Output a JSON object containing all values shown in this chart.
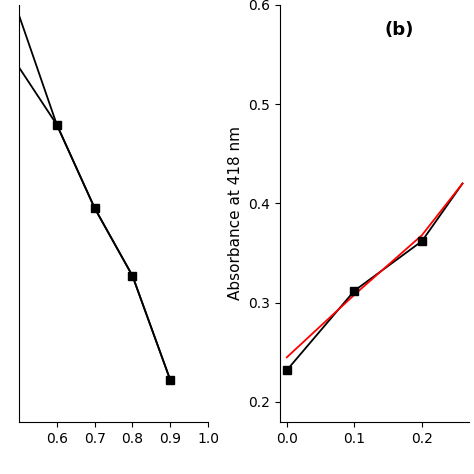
{
  "panel_a": {
    "data_x": [
      0.6,
      0.7,
      0.8,
      0.9
    ],
    "data_y": [
      0.535,
      0.455,
      0.39,
      0.29
    ],
    "line1_x": [
      0.5,
      0.6,
      0.7,
      0.8,
      0.9
    ],
    "line1_y": [
      0.59,
      0.535,
      0.455,
      0.39,
      0.29
    ],
    "line2_x": [
      0.5,
      0.6,
      0.7,
      0.8,
      0.9
    ],
    "line2_y": [
      0.64,
      0.535,
      0.455,
      0.39,
      0.29
    ],
    "xlim": [
      0.5,
      1.0
    ],
    "ylim": [
      0.25,
      0.65
    ],
    "xticks": [
      0.6,
      0.7,
      0.8,
      0.9,
      1.0
    ]
  },
  "panel_b": {
    "data_x": [
      0.0,
      0.1,
      0.2
    ],
    "data_y": [
      0.232,
      0.312,
      0.362
    ],
    "black_line_x": [
      0.0,
      0.1,
      0.2,
      0.26
    ],
    "black_line_y": [
      0.232,
      0.312,
      0.362,
      0.42
    ],
    "red_line_x": [
      0.0,
      0.1,
      0.2,
      0.26
    ],
    "red_line_y": [
      0.245,
      0.308,
      0.368,
      0.42
    ],
    "xlim": [
      -0.01,
      0.27
    ],
    "xticks": [
      0.0,
      0.1,
      0.2
    ],
    "ylim": [
      0.18,
      0.6
    ],
    "yticks": [
      0.2,
      0.3,
      0.4,
      0.5,
      0.6
    ],
    "ylabel": "Absorbance at 418 nm",
    "label": "(b)"
  },
  "marker": "s",
  "marker_size": 6,
  "marker_color": "black",
  "line_color_black": "black",
  "line_color_red": "red",
  "line_width": 1.3,
  "tick_fontsize": 10,
  "ylabel_fontsize": 11
}
